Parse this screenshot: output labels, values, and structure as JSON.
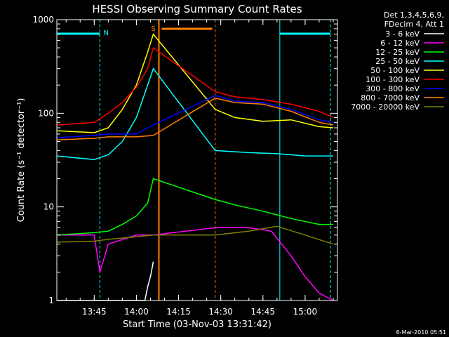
{
  "chart_data": {
    "type": "line",
    "title": "HESSI Observing Summary Count Rates",
    "xlabel": "Start Time (03-Nov-03 13:31:42)",
    "ylabel": "Count Rate (s⁻¹ detector⁻¹)",
    "yscale": "log",
    "ylim": [
      1,
      1000
    ],
    "xlim": [
      "13:31:42",
      "15:11:30"
    ],
    "x_ticks": [
      "13:45",
      "14:00",
      "14:15",
      "14:30",
      "14:45",
      "15:00"
    ],
    "y_ticks": [
      "1",
      "10",
      "100",
      "1000"
    ],
    "grid": false,
    "legend_header": [
      "Det 1,3,4,5,6,9,",
      "FDecim 4, Att 1"
    ],
    "series": [
      {
        "name": "3 - 6 keV",
        "color": "#ffffff",
        "x": [
          "13:31:42",
          "13:45",
          "14:00",
          "14:03",
          "14:04",
          "14:05",
          "14:06"
        ],
        "y": [
          1,
          1,
          1,
          1,
          1.4,
          1.8,
          2.6
        ]
      },
      {
        "name": "6 - 12 keV",
        "color": "#ff00ff",
        "x": [
          "13:31:42",
          "13:45",
          "13:47",
          "13:50",
          "14:00",
          "14:06",
          "14:28",
          "14:40",
          "14:48",
          "14:55",
          "15:00",
          "15:05",
          "15:10"
        ],
        "y": [
          5,
          5,
          2,
          4,
          5,
          5,
          6,
          6,
          5.5,
          3,
          1.8,
          1.2,
          1
        ]
      },
      {
        "name": "12 - 25 keV",
        "color": "#00ff00",
        "x": [
          "13:31:42",
          "13:45",
          "13:50",
          "13:55",
          "14:00",
          "14:04",
          "14:06",
          "14:28",
          "14:35",
          "14:45",
          "14:55",
          "15:05",
          "15:10"
        ],
        "y": [
          5,
          5.3,
          5.5,
          6.5,
          8,
          11,
          20,
          12,
          10.5,
          9,
          7.5,
          6.5,
          6.5
        ]
      },
      {
        "name": "25 - 50 keV",
        "color": "#00ffff",
        "x": [
          "13:31:42",
          "13:45",
          "13:50",
          "13:55",
          "14:00",
          "14:04",
          "14:06",
          "14:28",
          "14:40",
          "14:50",
          "15:00",
          "15:10"
        ],
        "y": [
          35,
          32,
          36,
          50,
          90,
          200,
          300,
          40,
          38,
          37,
          35,
          35
        ]
      },
      {
        "name": "50 - 100 keV",
        "color": "#ffff00",
        "x": [
          "13:31:42",
          "13:45",
          "13:50",
          "13:55",
          "14:00",
          "14:04",
          "14:06",
          "14:28",
          "14:35",
          "14:45",
          "14:55",
          "15:05",
          "15:10"
        ],
        "y": [
          65,
          62,
          70,
          110,
          200,
          450,
          700,
          110,
          90,
          82,
          85,
          72,
          70
        ]
      },
      {
        "name": "100 - 300 keV",
        "color": "#ff0000",
        "x": [
          "13:31:42",
          "13:45",
          "13:50",
          "13:55",
          "14:00",
          "14:04",
          "14:06",
          "14:28",
          "14:35",
          "14:45",
          "14:55",
          "15:05",
          "15:10"
        ],
        "y": [
          75,
          80,
          100,
          130,
          190,
          300,
          500,
          170,
          150,
          140,
          125,
          105,
          90
        ]
      },
      {
        "name": "300 - 800 keV",
        "color": "#0000ff",
        "x": [
          "13:31:42",
          "13:45",
          "13:50",
          "14:00",
          "14:06",
          "14:28",
          "14:35",
          "14:45",
          "14:55",
          "15:05",
          "15:10"
        ],
        "y": [
          55,
          58,
          60,
          60,
          75,
          155,
          135,
          130,
          110,
          85,
          80
        ]
      },
      {
        "name": "800 - 7000 keV",
        "color": "#ff8000",
        "x": [
          "13:31:42",
          "13:45",
          "13:50",
          "14:00",
          "14:06",
          "14:28",
          "14:35",
          "14:45",
          "14:55",
          "15:05",
          "15:10"
        ],
        "y": [
          52,
          54,
          56,
          56,
          58,
          145,
          130,
          125,
          105,
          80,
          75
        ]
      },
      {
        "name": "7000 - 20000 keV",
        "color": "#808000",
        "x": [
          "13:31:42",
          "13:45",
          "13:50",
          "14:00",
          "14:06",
          "14:28",
          "14:40",
          "14:50",
          "15:00",
          "15:10"
        ],
        "y": [
          4.2,
          4.3,
          4.5,
          4.8,
          5,
          5,
          5.5,
          6.2,
          5,
          4
        ]
      }
    ],
    "markers": {
      "saa_intervals": [
        [
          "13:31:42",
          "13:47"
        ],
        [
          "14:51",
          "15:09"
        ]
      ],
      "night_line_start": "14:08",
      "night_line_end": "14:28",
      "attenuator_flag": [
        "14:09",
        "14:27"
      ],
      "N_label": "N",
      "S_label": "S"
    }
  },
  "footer_timestamp": "6-Mar-2010 05:51"
}
